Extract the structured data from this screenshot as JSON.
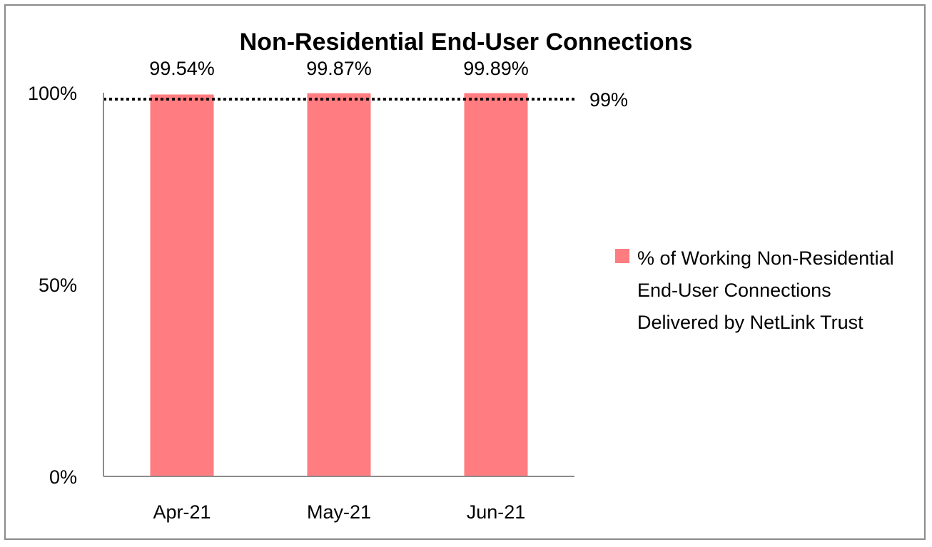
{
  "chart_data": {
    "type": "bar",
    "title": "Non-Residential End-User Connections",
    "categories": [
      "Apr-21",
      "May-21",
      "Jun-21"
    ],
    "series": [
      {
        "name": "% of Working Non-Residential End-User Connections Delivered by NetLink Trust",
        "values": [
          99.54,
          99.87,
          99.89
        ],
        "labels": [
          "99.54%",
          "99.87%",
          "99.89%"
        ],
        "color": "#ff7c80"
      }
    ],
    "ylim": [
      0,
      100
    ],
    "yticks": [
      0,
      50,
      100
    ],
    "ytick_labels": [
      "0%",
      "50%",
      "100%"
    ],
    "reference_line": {
      "value": 99,
      "label": "99%",
      "style": "dotted",
      "color": "#000000"
    },
    "grid": false,
    "legend": "right",
    "xlabel": "",
    "ylabel": ""
  }
}
